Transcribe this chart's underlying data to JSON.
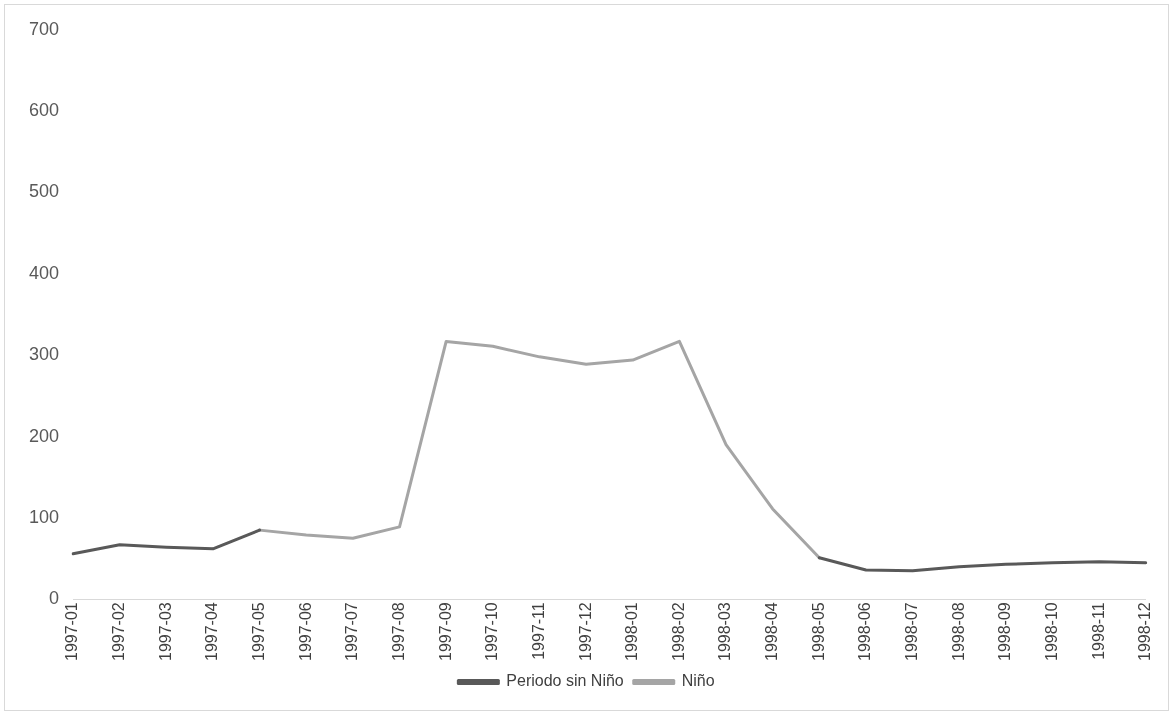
{
  "chart_data": {
    "type": "line",
    "categories": [
      "1997-01",
      "1997-02",
      "1997-03",
      "1997-04",
      "1997-05",
      "1997-06",
      "1997-07",
      "1997-08",
      "1997-09",
      "1997-10",
      "1997-11",
      "1997-12",
      "1998-01",
      "1998-02",
      "1998-03",
      "1998-04",
      "1998-05",
      "1998-06",
      "1998-07",
      "1998-08",
      "1998-09",
      "1998-10",
      "1998-11",
      "1998-12"
    ],
    "series": [
      {
        "name": "Periodo sin Niño",
        "color": "#595959",
        "values": [
          56,
          67,
          64,
          62,
          85,
          null,
          null,
          null,
          null,
          null,
          null,
          null,
          null,
          null,
          null,
          null,
          51,
          36,
          35,
          40,
          43,
          45,
          46,
          45
        ]
      },
      {
        "name": "Niño",
        "color": "#a5a5a5",
        "values": [
          null,
          null,
          null,
          null,
          85,
          79,
          75,
          89,
          317,
          311,
          298,
          289,
          294,
          317,
          190,
          111,
          51,
          null,
          null,
          null,
          null,
          null,
          null,
          null
        ]
      }
    ],
    "ylim": [
      0,
      700
    ],
    "yticks": [
      0,
      100,
      200,
      300,
      400,
      500,
      600,
      700
    ],
    "grid": false,
    "legend": "bottom",
    "marker": "none",
    "line_style": "solid"
  }
}
